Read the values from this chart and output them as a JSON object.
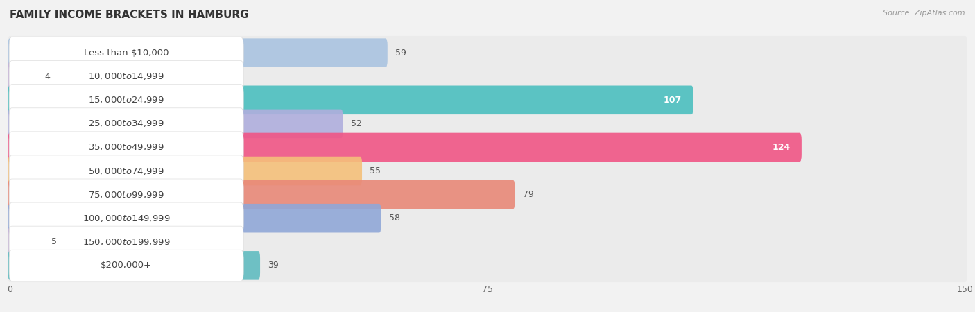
{
  "title": "FAMILY INCOME BRACKETS IN HAMBURG",
  "source": "Source: ZipAtlas.com",
  "categories": [
    "Less than $10,000",
    "$10,000 to $14,999",
    "$15,000 to $24,999",
    "$25,000 to $34,999",
    "$35,000 to $49,999",
    "$50,000 to $74,999",
    "$75,000 to $99,999",
    "$100,000 to $149,999",
    "$150,000 to $199,999",
    "$200,000+"
  ],
  "values": [
    59,
    4,
    107,
    52,
    124,
    55,
    79,
    58,
    5,
    39
  ],
  "bar_colors": [
    "#aac4e0",
    "#c5b2d6",
    "#4bbfbf",
    "#b0aedd",
    "#f05585",
    "#f5c07a",
    "#e88878",
    "#90a8d8",
    "#c8b8d8",
    "#60bcc0"
  ],
  "xlim": [
    0,
    150
  ],
  "xticks": [
    0,
    75,
    150
  ],
  "background_color": "#f2f2f2",
  "row_bg_color": "#ffffff",
  "title_fontsize": 11,
  "label_fontsize": 9.5,
  "value_fontsize": 9
}
